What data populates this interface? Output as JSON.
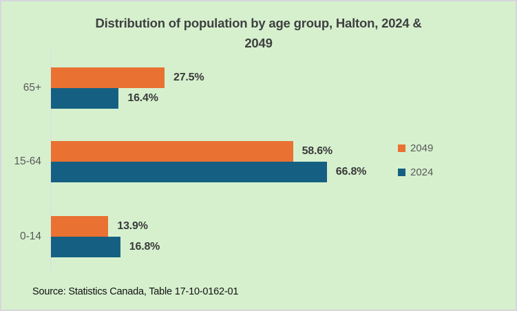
{
  "title_lines": [
    "Distribution of population by age group, Halton, 2024 &",
    "2049"
  ],
  "source": "Source: Statistics Canada, Table 17-10-0162-01",
  "colors": {
    "background": "#D6F0CE",
    "frame_border": "#D6D6DC",
    "title_text": "#3F4040",
    "axis_line": "#DBE2D8",
    "category_label": "#595959",
    "data_label": "#3A3A3A",
    "legend_text": "#595959",
    "series_2049": "#E97132",
    "series_2024": "#156082"
  },
  "chart_data": {
    "type": "bar",
    "orientation": "horizontal",
    "title": "Distribution of population by age group, Halton, 2024 & 2049",
    "categories": [
      "65+",
      "15-64",
      "0-14"
    ],
    "series": [
      {
        "name": "2049",
        "color": "#E97132",
        "values": [
          27.5,
          58.6,
          13.9
        ]
      },
      {
        "name": "2024",
        "color": "#156082",
        "values": [
          16.4,
          66.8,
          16.8
        ]
      }
    ],
    "value_suffix": "%",
    "data_labels": true,
    "xlim": [
      0,
      100
    ],
    "grid": false,
    "legend_position": "right",
    "source": "Source: Statistics Canada, Table 17-10-0162-01"
  }
}
